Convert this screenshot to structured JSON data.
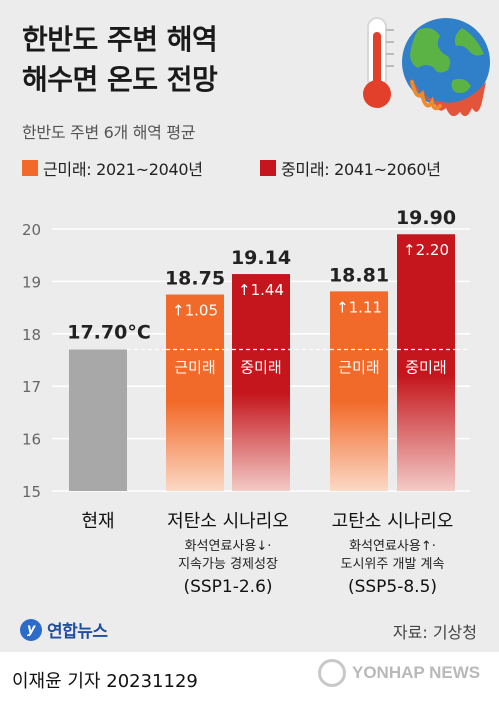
{
  "header": {
    "title_line1": "한반도 주변 해역",
    "title_line2": "해수면 온도 전망",
    "subtitle": "한반도 주변 6개 해역 평균"
  },
  "legend": [
    {
      "label": "근미래: 2021~2040년",
      "color": "#f26a2a"
    },
    {
      "label": "중미래: 2041~2060년",
      "color": "#c4161c"
    }
  ],
  "chart_data": {
    "type": "bar",
    "title": "한반도 주변 해역 해수면 온도 전망",
    "subtitle": "한반도 주변 6개 해역 평균",
    "ylim": [
      15,
      20
    ],
    "yticks": [
      "15",
      "16",
      "17",
      "18",
      "19",
      "20"
    ],
    "unit": "°C",
    "current": {
      "label": "현재",
      "value": 17.7,
      "value_label": "17.70°C"
    },
    "groups": [
      {
        "name": "저탄소 시나리오",
        "desc1": "화석연료사용↓·",
        "desc2": "지속가능 경제성장",
        "code": "(SSP1-2.6)",
        "bars": [
          {
            "series": "근미래",
            "value": 18.75,
            "value_label": "18.75",
            "delta": "↑1.05"
          },
          {
            "series": "중미래",
            "value": 19.14,
            "value_label": "19.14",
            "delta": "↑1.44"
          }
        ]
      },
      {
        "name": "고탄소 시나리오",
        "desc1": "화석연료사용↑·",
        "desc2": "도시위주 개발 계속",
        "code": "(SSP5-8.5)",
        "bars": [
          {
            "series": "근미래",
            "value": 18.81,
            "value_label": "18.81",
            "delta": "↑1.11"
          },
          {
            "series": "중미래",
            "value": 19.9,
            "value_label": "19.90",
            "delta": "↑2.20"
          }
        ]
      }
    ]
  },
  "footer": {
    "logo_text": "연합뉴스",
    "source": "자료: 기상청",
    "byline": "이재윤 기자  20231129",
    "watermark": "YONHAP NEWS"
  },
  "colors": {
    "near_top": "#f26a2a",
    "near_bottom": "#fad3bd",
    "mid_top": "#c4161c",
    "mid_bottom": "#f2c6c4",
    "current": "#a8a8a8"
  }
}
